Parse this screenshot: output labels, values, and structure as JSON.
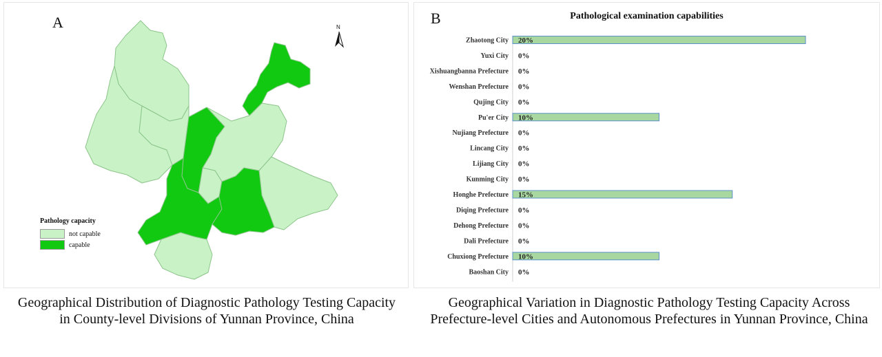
{
  "panel_a": {
    "letter": "A",
    "north_label": "N",
    "legend": {
      "title": "Pathology capacity",
      "items": [
        {
          "label": "not capable",
          "color": "#c9f2c6"
        },
        {
          "label": "capable",
          "color": "#12c912"
        }
      ]
    },
    "caption": "Geographical Distribution of Diagnostic Pathology Testing Capacity in County-level Divisions of Yunnan Province, China"
  },
  "panel_b": {
    "letter": "B",
    "caption": "Geographical Variation in Diagnostic Pathology Testing Capacity Across Prefecture-level Cities and Autonomous Prefectures in Yunnan Province, China"
  },
  "colors": {
    "map_light": "#c9f2c6",
    "map_dark": "#12c912",
    "bar_fill": "#a8d8a0",
    "bar_border": "#5b8fc9"
  },
  "chart_data": {
    "type": "bar",
    "orientation": "horizontal",
    "title": "Pathological examination capabilities",
    "categories": [
      "Zhaotong City",
      "Yuxi City",
      "Xishuangbanna Prefecture",
      "Wenshan  Prefecture",
      "Qujing City",
      "Pu'er City",
      "Nujiang Prefecture",
      "Lincang City",
      "Lijiang City",
      "Kunming City",
      "Honghe Prefecture",
      "Diqing Prefecture",
      "Dehong Prefecture",
      "Dali Prefecture",
      "Chuxiong Prefecture",
      "Baoshan City"
    ],
    "values": [
      20,
      0,
      0,
      0,
      0,
      10,
      0,
      0,
      0,
      0,
      15,
      0,
      0,
      0,
      10,
      0
    ],
    "value_labels": [
      "20%",
      "0%",
      "0%",
      "0%",
      "0%",
      "10%",
      "0%",
      "0%",
      "0%",
      "0%",
      "15%",
      "0%",
      "0%",
      "0%",
      "10%",
      "0%"
    ],
    "xlim": [
      0,
      20
    ],
    "grid": false,
    "legend": "none"
  }
}
